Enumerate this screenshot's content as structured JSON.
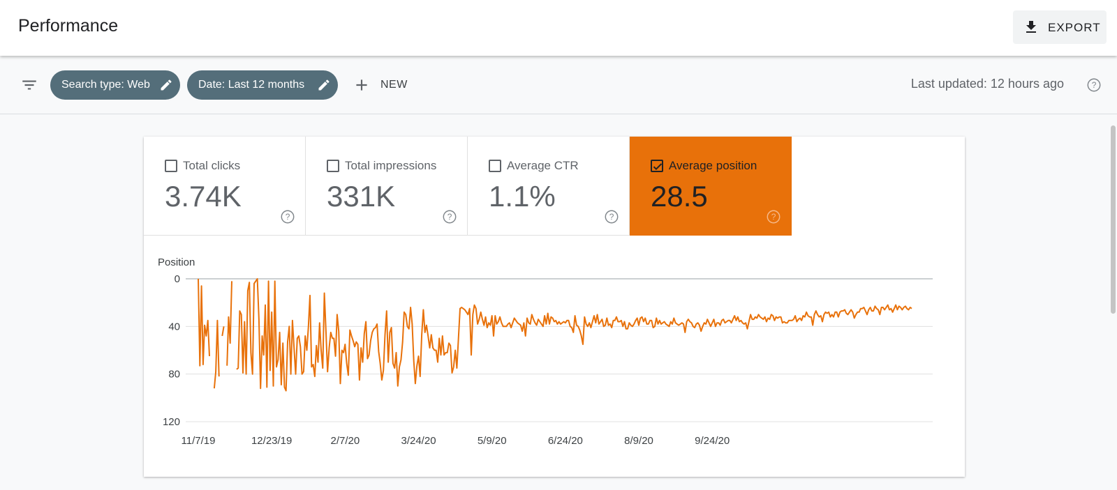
{
  "header": {
    "title": "Performance",
    "export_label": "EXPORT"
  },
  "filters": {
    "chips": [
      {
        "label": "Search type: Web"
      },
      {
        "label": "Date: Last 12 months"
      }
    ],
    "new_label": "NEW",
    "last_updated": "Last updated: 12 hours ago"
  },
  "metrics": [
    {
      "label": "Total clicks",
      "value": "3.74K",
      "checked": false
    },
    {
      "label": "Total impressions",
      "value": "331K",
      "checked": false
    },
    {
      "label": "Average CTR",
      "value": "1.1%",
      "checked": false
    },
    {
      "label": "Average position",
      "value": "28.5",
      "checked": true
    }
  ],
  "colors": {
    "accent": "#e8710a",
    "chip": "#546e7a",
    "grid": "#e0e0e0"
  },
  "chart_data": {
    "type": "line",
    "ylabel": "Position",
    "y_reversed": true,
    "ylim": [
      0,
      120
    ],
    "yticks": [
      0,
      40,
      80,
      120
    ],
    "x_tick_labels": [
      "11/7/19",
      "12/23/19",
      "2/7/20",
      "3/24/20",
      "5/9/20",
      "6/24/20",
      "8/9/20",
      "9/24/20"
    ],
    "start_date": "2019-11-07",
    "series": [
      {
        "name": "Average position",
        "values": [
          0,
          73,
          6,
          72,
          39,
          48,
          35,
          65,
          null,
          null,
          92,
          78,
          35,
          82,
          null,
          48,
          40,
          null,
          73,
          32,
          54,
          2,
          null,
          null,
          76,
          75,
          27,
          30,
          79,
          36,
          80,
          10,
          3,
          62,
          80,
          4,
          2,
          0,
          34,
          92,
          48,
          64,
          22,
          91,
          2,
          77,
          28,
          90,
          2,
          74,
          68,
          45,
          89,
          54,
          91,
          94,
          53,
          40,
          80,
          35,
          58,
          80,
          50,
          48,
          57,
          80,
          78,
          48,
          60,
          40,
          14,
          74,
          72,
          82,
          56,
          70,
          37,
          60,
          75,
          12,
          44,
          78,
          58,
          45,
          50,
          50,
          65,
          30,
          44,
          88,
          60,
          62,
          55,
          71,
          81,
          43,
          48,
          52,
          57,
          53,
          55,
          85,
          58,
          70,
          46,
          36,
          67,
          64,
          52,
          45,
          42,
          41,
          38,
          61,
          71,
          85,
          77,
          47,
          27,
          70,
          45,
          41,
          71,
          75,
          62,
          90,
          74,
          68,
          53,
          28,
          30,
          40,
          42,
          24,
          38,
          69,
          88,
          73,
          65,
          82,
          47,
          26,
          45,
          39,
          48,
          58,
          47,
          58,
          60,
          60,
          70,
          50,
          64,
          48,
          64,
          62,
          62,
          54,
          56,
          79,
          74,
          60,
          75,
          50,
          25,
          24,
          25,
          26,
          28,
          30,
          25,
          64,
          30,
          22,
          25,
          38,
          34,
          28,
          34,
          39,
          32,
          41,
          37,
          39,
          31,
          48,
          31,
          38,
          36,
          32,
          37,
          40,
          40,
          40,
          38,
          37,
          41,
          37,
          33,
          35,
          37,
          38,
          39,
          44,
          37,
          48,
          33,
          37,
          38,
          30,
          34,
          37,
          39,
          34,
          36,
          38,
          40,
          31,
          38,
          29,
          38,
          32,
          33,
          36,
          35,
          38,
          36,
          38,
          37,
          36,
          37,
          35,
          35,
          40,
          41,
          45,
          31,
          39,
          40,
          43,
          48,
          55,
          32,
          38,
          40,
          37,
          41,
          36,
          31,
          37,
          30,
          38,
          36,
          34,
          40,
          39,
          33,
          39,
          38,
          41,
          35,
          35,
          32,
          36,
          36,
          35,
          40,
          36,
          42,
          42,
          37,
          39,
          40,
          38,
          35,
          33,
          39,
          33,
          32,
          36,
          33,
          38,
          38,
          35,
          35,
          41,
          40,
          33,
          38,
          35,
          38,
          37,
          36,
          38,
          39,
          40,
          36,
          38,
          33,
          37,
          38,
          39,
          38,
          37,
          38,
          45,
          36,
          34,
          36,
          37,
          40,
          41,
          38,
          37,
          39,
          44,
          40,
          37,
          38,
          34,
          37,
          40,
          37,
          34,
          40,
          37,
          37,
          39,
          35,
          34,
          37,
          36,
          35,
          35,
          37,
          34,
          31,
          35,
          32,
          36,
          35,
          37,
          38,
          37,
          42,
          36,
          30,
          34,
          34,
          32,
          33,
          30,
          32,
          33,
          34,
          32,
          36,
          33,
          34,
          30,
          31,
          35,
          32,
          33,
          32,
          32,
          37,
          36,
          37,
          37,
          35,
          35,
          35,
          34,
          31,
          36,
          34,
          33,
          35,
          31,
          32,
          28,
          31,
          32,
          32,
          39,
          30,
          27,
          30,
          32,
          31,
          36,
          30,
          28,
          29,
          28,
          32,
          30,
          32,
          28,
          28,
          32,
          28,
          27,
          27,
          26,
          29,
          30,
          28,
          26,
          28,
          33,
          30,
          28,
          28,
          25,
          25,
          24,
          27,
          30,
          26,
          24,
          27,
          27,
          23,
          25,
          26,
          30,
          24,
          24,
          26,
          24,
          22,
          26,
          25,
          28,
          25,
          22,
          26,
          23,
          24,
          26,
          24,
          23,
          25,
          26,
          24,
          25
        ]
      }
    ]
  }
}
